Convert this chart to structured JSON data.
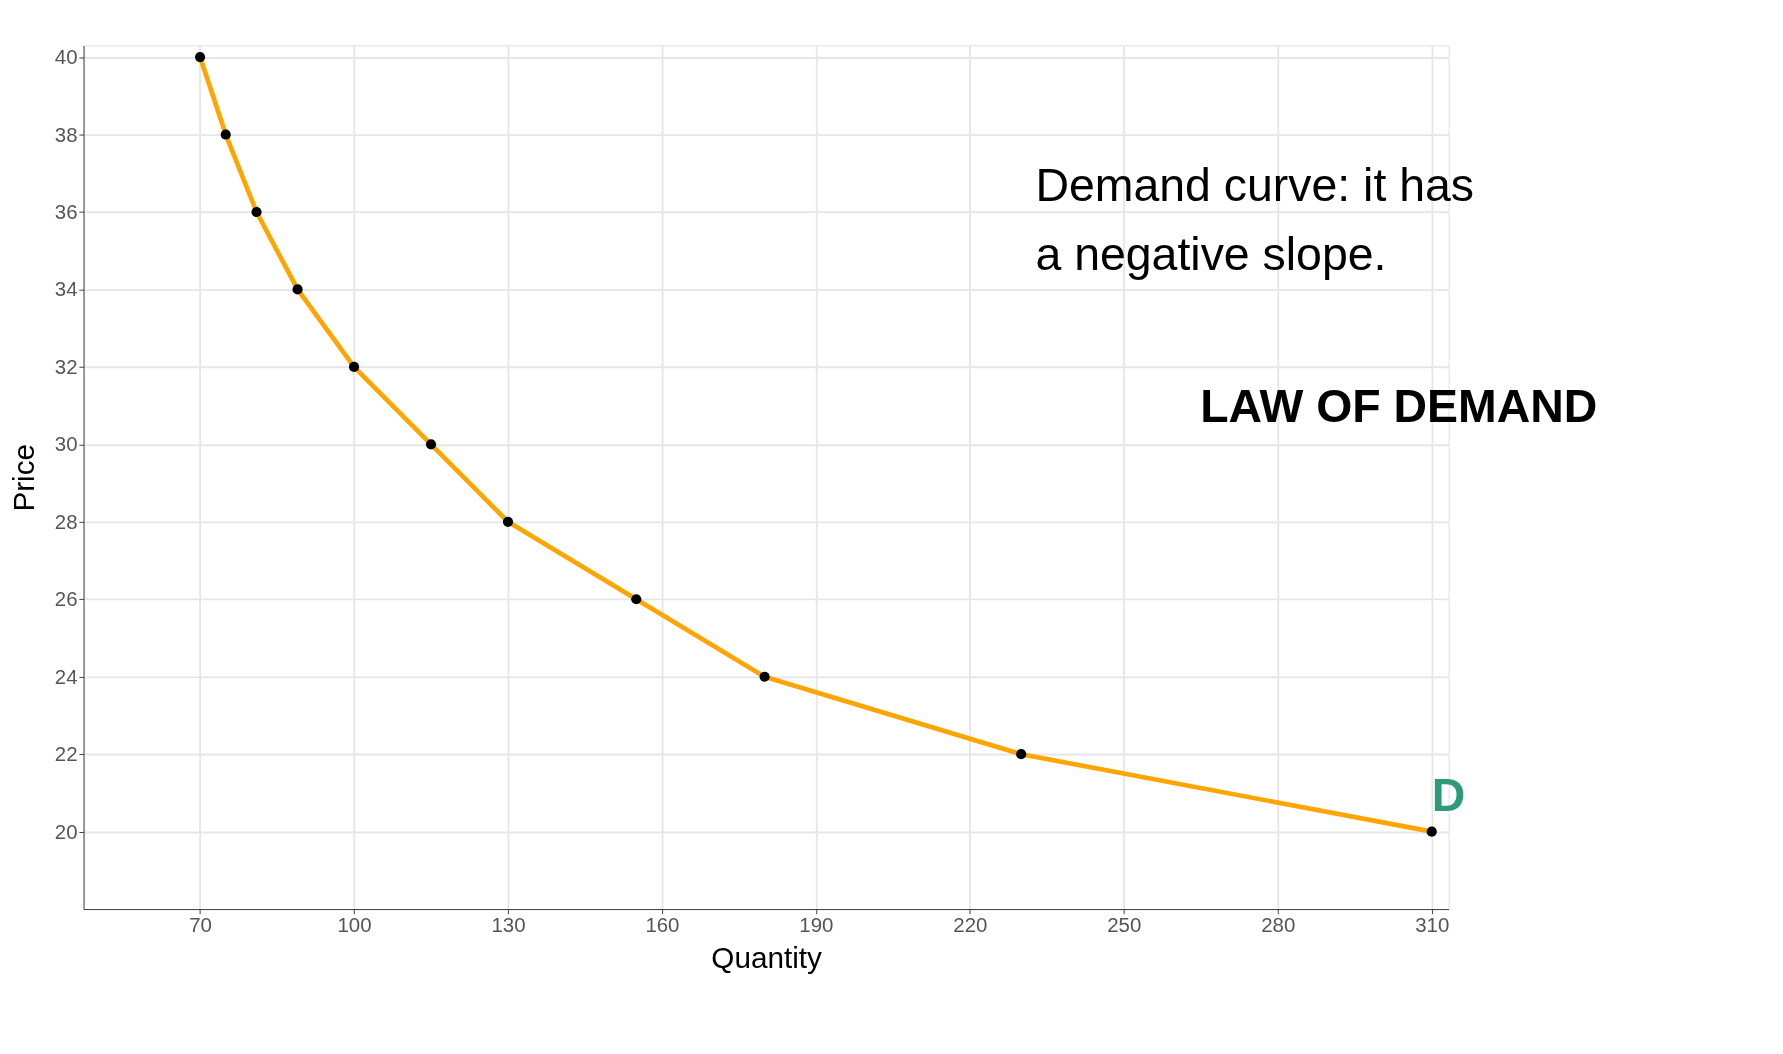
{
  "chart_data": {
    "type": "line",
    "xlabel": "Quantity",
    "ylabel": "Price",
    "x": [
      70,
      75,
      81,
      89,
      100,
      115,
      130,
      155,
      180,
      230,
      310
    ],
    "series": [
      {
        "color": "#ffa500",
        "values": [
          40,
          38,
          36,
          34,
          32,
          30,
          28,
          26,
          24,
          22,
          20
        ]
      }
    ],
    "xlim": [
      47.3,
      313.3
    ],
    "ylim": [
      18,
      40.3
    ],
    "xticks": [
      70,
      100,
      130,
      160,
      190,
      220,
      250,
      280,
      310
    ],
    "yticks": [
      20,
      22,
      24,
      26,
      28,
      30,
      32,
      34,
      36,
      38,
      40
    ],
    "grid": true,
    "marker": "circle",
    "line_style": "solid",
    "annotations": [
      "Demand curve: it has a negative slope.",
      "LAW OF DEMAND",
      {
        "text": "D",
        "x": 310,
        "y": 20
      }
    ]
  }
}
